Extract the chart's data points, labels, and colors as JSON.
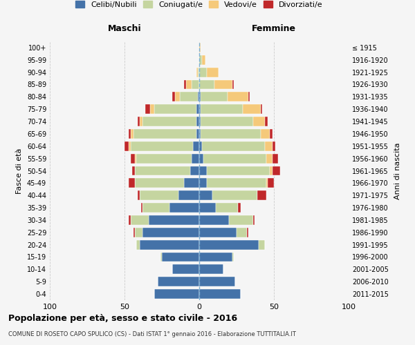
{
  "age_groups": [
    "0-4",
    "5-9",
    "10-14",
    "15-19",
    "20-24",
    "25-29",
    "30-34",
    "35-39",
    "40-44",
    "45-49",
    "50-54",
    "55-59",
    "60-64",
    "65-69",
    "70-74",
    "75-79",
    "80-84",
    "85-89",
    "90-94",
    "95-99",
    "100+"
  ],
  "birth_years": [
    "2011-2015",
    "2006-2010",
    "2001-2005",
    "1996-2000",
    "1991-1995",
    "1986-1990",
    "1981-1985",
    "1976-1980",
    "1971-1975",
    "1966-1970",
    "1961-1965",
    "1956-1960",
    "1951-1955",
    "1946-1950",
    "1941-1945",
    "1936-1940",
    "1931-1935",
    "1926-1930",
    "1921-1925",
    "1916-1920",
    "≤ 1915"
  ],
  "colors": {
    "celibe": "#4472a8",
    "coniugato": "#c5d5a0",
    "vedovo": "#f5c97a",
    "divorziato": "#c0282a"
  },
  "maschi": {
    "celibe": [
      30,
      28,
      18,
      25,
      40,
      38,
      34,
      20,
      14,
      10,
      6,
      5,
      4,
      2,
      2,
      2,
      1,
      0,
      0,
      0,
      0
    ],
    "coniugato": [
      0,
      0,
      0,
      1,
      2,
      5,
      12,
      18,
      26,
      33,
      37,
      37,
      42,
      42,
      36,
      28,
      12,
      5,
      1,
      0,
      0
    ],
    "vedovo": [
      0,
      0,
      0,
      0,
      0,
      0,
      0,
      0,
      0,
      0,
      0,
      1,
      1,
      2,
      2,
      3,
      3,
      4,
      1,
      0,
      0
    ],
    "divorziato": [
      0,
      0,
      0,
      0,
      0,
      1,
      1,
      1,
      1,
      4,
      2,
      3,
      3,
      1,
      1,
      3,
      2,
      1,
      0,
      0,
      0
    ]
  },
  "femmine": {
    "celibe": [
      28,
      24,
      16,
      22,
      40,
      25,
      20,
      11,
      9,
      5,
      5,
      3,
      2,
      1,
      1,
      1,
      1,
      0,
      0,
      0,
      0
    ],
    "coniugato": [
      0,
      0,
      0,
      1,
      4,
      7,
      16,
      15,
      30,
      40,
      42,
      42,
      42,
      40,
      35,
      28,
      18,
      10,
      5,
      2,
      0
    ],
    "vedovo": [
      0,
      0,
      0,
      0,
      0,
      0,
      0,
      0,
      0,
      1,
      2,
      4,
      5,
      6,
      8,
      12,
      14,
      12,
      8,
      2,
      1
    ],
    "divorziato": [
      0,
      0,
      0,
      0,
      0,
      1,
      1,
      2,
      6,
      4,
      5,
      4,
      2,
      2,
      2,
      1,
      1,
      1,
      0,
      0,
      0
    ]
  },
  "xlim": 100,
  "title": "Popolazione per età, sesso e stato civile - 2016",
  "subtitle": "COMUNE DI ROSETO CAPO SPULICO (CS) - Dati ISTAT 1° gennaio 2016 - Elaborazione TUTTITALIA.IT",
  "ylabel_left": "Fasce di età",
  "ylabel_right": "Anni di nascita",
  "xlabel_maschi": "Maschi",
  "xlabel_femmine": "Femmine",
  "legend_labels": [
    "Celibi/Nubili",
    "Coniugati/e",
    "Vedovi/e",
    "Divorziati/e"
  ],
  "bg_color": "#f5f5f5",
  "grid_color": "#cccccc"
}
